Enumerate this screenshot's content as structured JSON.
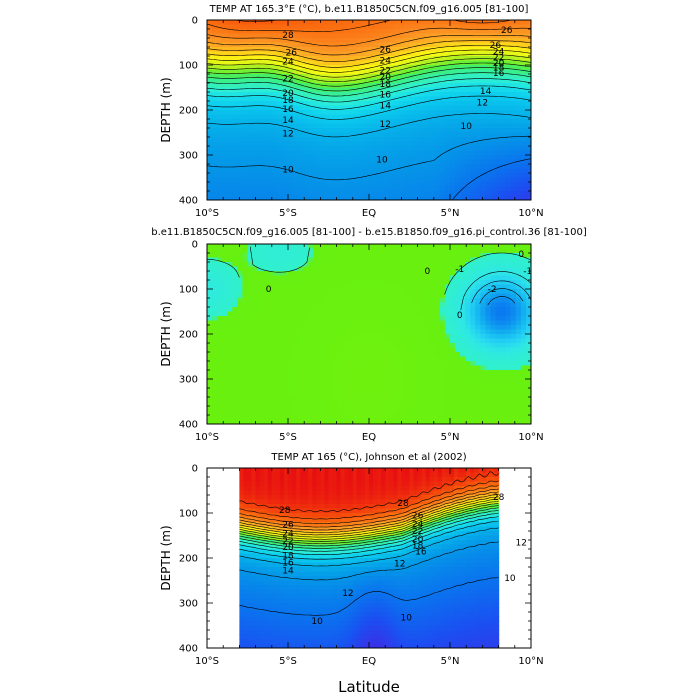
{
  "chart_data": [
    {
      "type": "contour",
      "title": "TEMP AT 165.3°E (°C), b.e11.B1850C5CN.f09_g16.005 [81-100]",
      "ylabel": "DEPTH (m)",
      "xlim": [
        -10,
        10
      ],
      "ylim": [
        0,
        400
      ],
      "y_inverted": true,
      "x_ticks": [
        "10°S",
        "5°S",
        "EQ",
        "5°N",
        "10°N"
      ],
      "y_ticks": [
        "0",
        "100",
        "200",
        "300",
        "400"
      ],
      "field_extent": [
        -10,
        10
      ],
      "contour_interval": 1,
      "contour_labels": [
        {
          "text": "26",
          "x": -4.8,
          "y": 72
        },
        {
          "text": "26",
          "x": 1,
          "y": 65
        },
        {
          "text": "26",
          "x": 7.8,
          "y": 55
        },
        {
          "text": "26",
          "x": 8.5,
          "y": 22
        },
        {
          "text": "28",
          "x": -5,
          "y": 33
        },
        {
          "text": "24",
          "x": 1,
          "y": 90
        },
        {
          "text": "24",
          "x": -5,
          "y": 92
        },
        {
          "text": "24",
          "x": 8.0,
          "y": 70
        },
        {
          "text": "22",
          "x": 8.0,
          "y": 83
        },
        {
          "text": "22",
          "x": 1,
          "y": 112
        },
        {
          "text": "22",
          "x": -5,
          "y": 130
        },
        {
          "text": "20",
          "x": 8.0,
          "y": 96
        },
        {
          "text": "20",
          "x": 1,
          "y": 127
        },
        {
          "text": "20",
          "x": -5,
          "y": 162
        },
        {
          "text": "18",
          "x": 8.0,
          "y": 106
        },
        {
          "text": "18",
          "x": 1,
          "y": 142
        },
        {
          "text": "18",
          "x": -5,
          "y": 178
        },
        {
          "text": "16",
          "x": 8.0,
          "y": 118
        },
        {
          "text": "16",
          "x": 1,
          "y": 166
        },
        {
          "text": "16",
          "x": -5,
          "y": 198
        },
        {
          "text": "14",
          "x": 7.2,
          "y": 158
        },
        {
          "text": "14",
          "x": 1,
          "y": 190
        },
        {
          "text": "14",
          "x": -5,
          "y": 222
        },
        {
          "text": "12",
          "x": 7.0,
          "y": 183
        },
        {
          "text": "12",
          "x": 1,
          "y": 231
        },
        {
          "text": "12",
          "x": -5,
          "y": 252
        },
        {
          "text": "10",
          "x": 6.0,
          "y": 236
        },
        {
          "text": "10",
          "x": 0.8,
          "y": 310
        },
        {
          "text": "10",
          "x": -5.0,
          "y": 332
        }
      ]
    },
    {
      "type": "contour",
      "title": "b.e11.B1850C5CN.f09_g16.005 [81-100] - b.e15.B1850.f09_g16.pi_control.36 [81-100]",
      "ylabel": "DEPTH (m)",
      "xlim": [
        -10,
        10
      ],
      "ylim": [
        0,
        400
      ],
      "y_inverted": true,
      "x_ticks": [
        "10°S",
        "5°S",
        "EQ",
        "5°N",
        "10°N"
      ],
      "y_ticks": [
        "0",
        "100",
        "200",
        "300",
        "400"
      ],
      "field_extent": [
        -10,
        10
      ],
      "contour_interval": 1,
      "contour_labels": [
        {
          "text": "0",
          "x": -6.2,
          "y": 100
        },
        {
          "text": "0",
          "x": 3.6,
          "y": 60
        },
        {
          "text": "0",
          "x": 9.4,
          "y": 22
        },
        {
          "text": "0",
          "x": 5.6,
          "y": 158
        },
        {
          "text": "-1",
          "x": 9.8,
          "y": 60
        },
        {
          "text": "-1",
          "x": 5.6,
          "y": 55
        },
        {
          "text": "-2",
          "x": 7.6,
          "y": 100
        }
      ]
    },
    {
      "type": "contour",
      "title": "TEMP AT 165 (°C), Johnson et al (2002)",
      "ylabel": "DEPTH (m)",
      "xlabel": "Latitude",
      "xlim": [
        -10,
        10
      ],
      "ylim": [
        0,
        400
      ],
      "y_inverted": true,
      "x_ticks": [
        "10°S",
        "5°S",
        "EQ",
        "5°N",
        "10°N"
      ],
      "y_ticks": [
        "0",
        "100",
        "200",
        "300",
        "400"
      ],
      "field_extent": [
        -8,
        8
      ],
      "contour_interval": 1,
      "contour_labels": [
        {
          "text": "28",
          "x": -5.2,
          "y": 93
        },
        {
          "text": "28",
          "x": 2.1,
          "y": 78
        },
        {
          "text": "28",
          "x": 8.0,
          "y": 64
        },
        {
          "text": "26",
          "x": 3.0,
          "y": 106
        },
        {
          "text": "24",
          "x": 3.0,
          "y": 124
        },
        {
          "text": "22",
          "x": 3.0,
          "y": 140
        },
        {
          "text": "20",
          "x": 3.0,
          "y": 158
        },
        {
          "text": "18",
          "x": 3.0,
          "y": 172
        },
        {
          "text": "16",
          "x": 3.2,
          "y": 186
        },
        {
          "text": "26",
          "x": -5.0,
          "y": 126
        },
        {
          "text": "24",
          "x": -5.0,
          "y": 146
        },
        {
          "text": "22",
          "x": -5.0,
          "y": 162
        },
        {
          "text": "20",
          "x": -5.0,
          "y": 176
        },
        {
          "text": "18",
          "x": -5.0,
          "y": 194
        },
        {
          "text": "16",
          "x": -5.0,
          "y": 210
        },
        {
          "text": "14",
          "x": -5.0,
          "y": 228
        },
        {
          "text": "12",
          "x": 1.9,
          "y": 212
        },
        {
          "text": "12",
          "x": 9.4,
          "y": 165
        },
        {
          "text": "12",
          "x": -1.3,
          "y": 278
        },
        {
          "text": "10",
          "x": 8.7,
          "y": 244
        },
        {
          "text": "10",
          "x": -3.2,
          "y": 340
        },
        {
          "text": "10",
          "x": 2.3,
          "y": 332
        }
      ]
    }
  ]
}
